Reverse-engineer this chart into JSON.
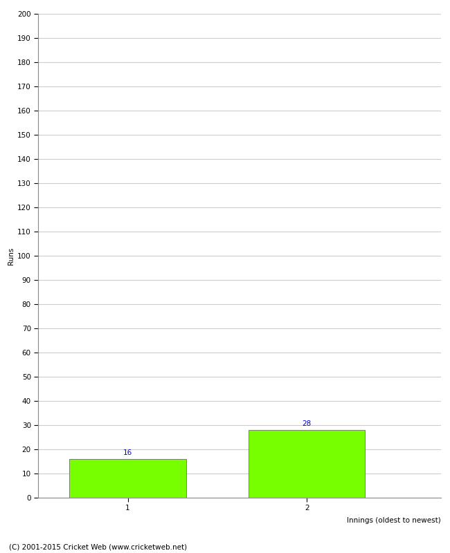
{
  "categories": [
    "1",
    "2"
  ],
  "values": [
    16,
    28
  ],
  "bar_color": "#77ff00",
  "bar_edgecolor": "#555555",
  "ylabel": "Runs",
  "xlabel": "Innings (oldest to newest)",
  "ylim": [
    0,
    200
  ],
  "yticks": [
    0,
    10,
    20,
    30,
    40,
    50,
    60,
    70,
    80,
    90,
    100,
    110,
    120,
    130,
    140,
    150,
    160,
    170,
    180,
    190,
    200
  ],
  "annotation_color": "#0000cc",
  "annotation_fontsize": 7.5,
  "axis_label_fontsize": 7.5,
  "tick_fontsize": 7.5,
  "footer_text": "(C) 2001-2015 Cricket Web (www.cricketweb.net)",
  "footer_fontsize": 7.5,
  "background_color": "#ffffff",
  "grid_color": "#cccccc",
  "bar_width": 0.65
}
